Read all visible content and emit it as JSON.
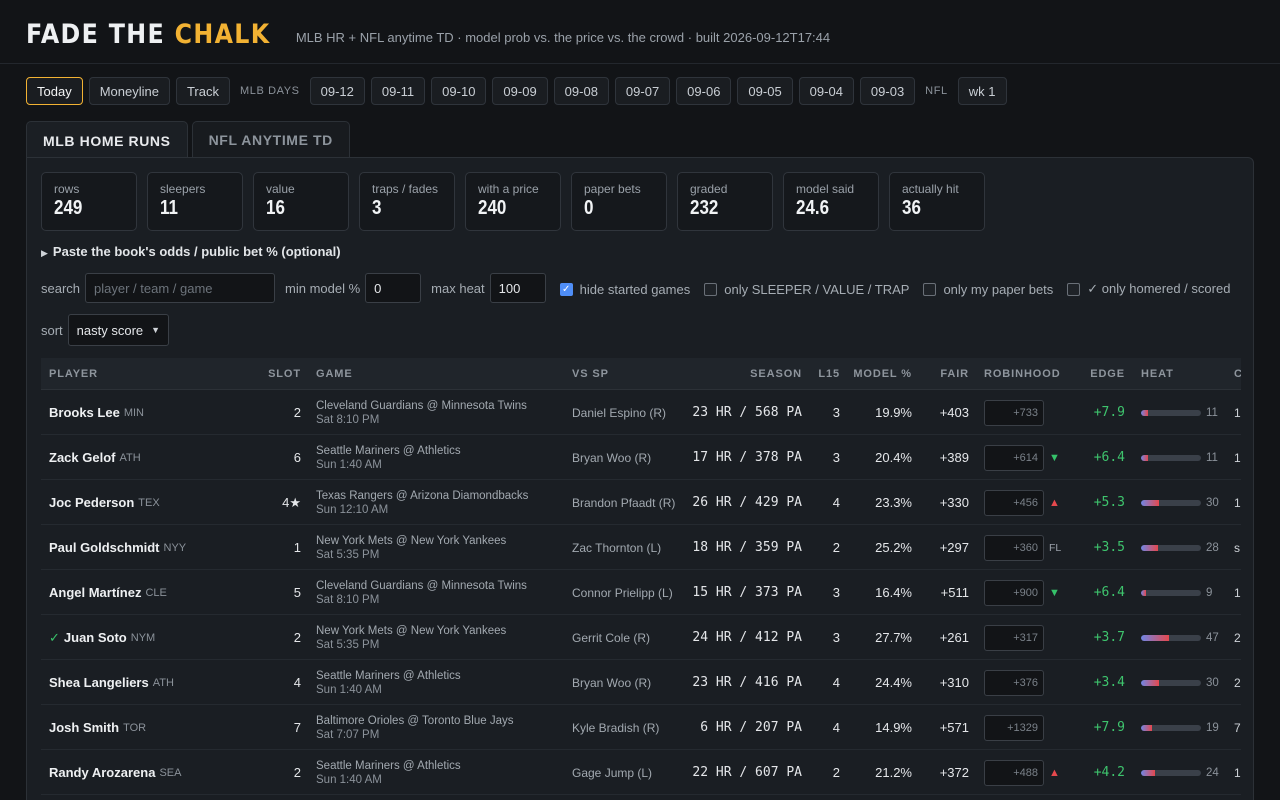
{
  "header": {
    "logo_part1": "FADE THE",
    "logo_part2": "CHALK",
    "subtitle": "MLB HR + NFL anytime TD · model prob vs. the price vs. the crowd · built 2026-09-12T17:44"
  },
  "nav": {
    "today": "Today",
    "moneyline": "Moneyline",
    "track": "Track",
    "mlb_days_label": "MLB DAYS",
    "days": [
      "09-12",
      "09-11",
      "09-10",
      "09-09",
      "09-08",
      "09-07",
      "09-06",
      "09-05",
      "09-04",
      "09-03"
    ],
    "nfl_label": "NFL",
    "nfl_week": "wk 1"
  },
  "sport_tabs": [
    "MLB HOME RUNS",
    "NFL ANYTIME TD"
  ],
  "stats": [
    {
      "label": "rows",
      "value": "249"
    },
    {
      "label": "sleepers",
      "value": "11"
    },
    {
      "label": "value",
      "value": "16"
    },
    {
      "label": "traps / fades",
      "value": "3"
    },
    {
      "label": "with a price",
      "value": "240"
    },
    {
      "label": "paper bets",
      "value": "0"
    },
    {
      "label": "graded",
      "value": "232"
    },
    {
      "label": "model said",
      "value": "24.6"
    },
    {
      "label": "actually hit",
      "value": "36"
    }
  ],
  "paste_toggle": "Paste the book's odds / public bet % (optional)",
  "filters": {
    "search_label": "search",
    "search_placeholder": "player / team / game",
    "min_model_label": "min model %",
    "min_model_value": "0",
    "max_heat_label": "max heat",
    "max_heat_value": "100",
    "hide_started": {
      "label": "hide started games",
      "checked": true
    },
    "only_tags": {
      "label": "only SLEEPER / VALUE / TRAP",
      "checked": false
    },
    "only_paper": {
      "label": "only my paper bets",
      "checked": false
    },
    "only_homered": {
      "label": "✓ only homered / scored",
      "checked": false
    }
  },
  "sort": {
    "label": "sort",
    "value": "nasty score"
  },
  "table": {
    "columns": {
      "player": "PLAYER",
      "slot": "SLOT",
      "game": "GAME",
      "vs_sp": "VS SP",
      "season": "SEASON",
      "l15": "L15",
      "model": "MODEL %",
      "fair": "FAIR",
      "robinhood": "ROBINHOOD",
      "edge": "EDGE",
      "heat": "HEAT",
      "cut": "C"
    },
    "rows": [
      {
        "homered": "",
        "name": "Brooks Lee",
        "team": "MIN",
        "slot": "2",
        "game": "Cleveland Guardians @ Minnesota Twins",
        "time": "Sat 8:10 PM",
        "vs": "Daniel Espino (R)",
        "season": "23 HR / 568 PA",
        "l15": "3",
        "model": "19.9%",
        "fair": "+403",
        "price": "+733",
        "move": "",
        "move_dir": "",
        "edge": "+7.9",
        "heat": 11,
        "heat_label": "11",
        "cut": "1"
      },
      {
        "homered": "",
        "name": "Zack Gelof",
        "team": "ATH",
        "slot": "6",
        "game": "Seattle Mariners @ Athletics",
        "time": "Sun 1:40 AM",
        "vs": "Bryan Woo (R)",
        "season": "17 HR / 378 PA",
        "l15": "3",
        "model": "20.4%",
        "fair": "+389",
        "price": "+614",
        "move": "▼",
        "move_dir": "down",
        "edge": "+6.4",
        "heat": 11,
        "heat_label": "11",
        "cut": "1"
      },
      {
        "homered": "",
        "name": "Joc Pederson",
        "team": "TEX",
        "slot": "4★",
        "game": "Texas Rangers @ Arizona Diamondbacks",
        "time": "Sun 12:10 AM",
        "vs": "Brandon Pfaadt (R)",
        "season": "26 HR / 429 PA",
        "l15": "4",
        "model": "23.3%",
        "fair": "+330",
        "price": "+456",
        "move": "▲",
        "move_dir": "up",
        "edge": "+5.3",
        "heat": 30,
        "heat_label": "30",
        "cut": "1"
      },
      {
        "homered": "",
        "name": "Paul Goldschmidt",
        "team": "NYY",
        "slot": "1",
        "game": "New York Mets @ New York Yankees",
        "time": "Sat 5:35 PM",
        "vs": "Zac Thornton (L)",
        "season": "18 HR / 359 PA",
        "l15": "2",
        "model": "25.2%",
        "fair": "+297",
        "price": "+360",
        "move": "FL",
        "move_dir": "txt",
        "edge": "+3.5",
        "heat": 28,
        "heat_label": "28",
        "cut": "s"
      },
      {
        "homered": "",
        "name": "Angel Martínez",
        "team": "CLE",
        "slot": "5",
        "game": "Cleveland Guardians @ Minnesota Twins",
        "time": "Sat 8:10 PM",
        "vs": "Connor Prielipp (L)",
        "season": "15 HR / 373 PA",
        "l15": "3",
        "model": "16.4%",
        "fair": "+511",
        "price": "+900",
        "move": "▼",
        "move_dir": "down",
        "edge": "+6.4",
        "heat": 9,
        "heat_label": "9",
        "cut": "1"
      },
      {
        "homered": "✓",
        "name": "Juan Soto",
        "team": "NYM",
        "slot": "2",
        "game": "New York Mets @ New York Yankees",
        "time": "Sat 5:35 PM",
        "vs": "Gerrit Cole (R)",
        "season": "24 HR / 412 PA",
        "l15": "3",
        "model": "27.7%",
        "fair": "+261",
        "price": "+317",
        "move": "",
        "move_dir": "",
        "edge": "+3.7",
        "heat": 47,
        "heat_label": "47",
        "cut": "2"
      },
      {
        "homered": "",
        "name": "Shea Langeliers",
        "team": "ATH",
        "slot": "4",
        "game": "Seattle Mariners @ Athletics",
        "time": "Sun 1:40 AM",
        "vs": "Bryan Woo (R)",
        "season": "23 HR / 416 PA",
        "l15": "4",
        "model": "24.4%",
        "fair": "+310",
        "price": "+376",
        "move": "",
        "move_dir": "",
        "edge": "+3.4",
        "heat": 30,
        "heat_label": "30",
        "cut": "2"
      },
      {
        "homered": "",
        "name": "Josh Smith",
        "team": "TOR",
        "slot": "7",
        "game": "Baltimore Orioles @ Toronto Blue Jays",
        "time": "Sat 7:07 PM",
        "vs": "Kyle Bradish (R)",
        "season": "6 HR / 207 PA",
        "l15": "4",
        "model": "14.9%",
        "fair": "+571",
        "price": "+1329",
        "move": "",
        "move_dir": "",
        "edge": "+7.9",
        "heat": 19,
        "heat_label": "19",
        "cut": "7"
      },
      {
        "homered": "",
        "name": "Randy Arozarena",
        "team": "SEA",
        "slot": "2",
        "game": "Seattle Mariners @ Athletics",
        "time": "Sun 1:40 AM",
        "vs": "Gage Jump (L)",
        "season": "22 HR / 607 PA",
        "l15": "2",
        "model": "21.2%",
        "fair": "+372",
        "price": "+488",
        "move": "▲",
        "move_dir": "up",
        "edge": "+4.2",
        "heat": 24,
        "heat_label": "24",
        "cut": "1"
      }
    ]
  }
}
